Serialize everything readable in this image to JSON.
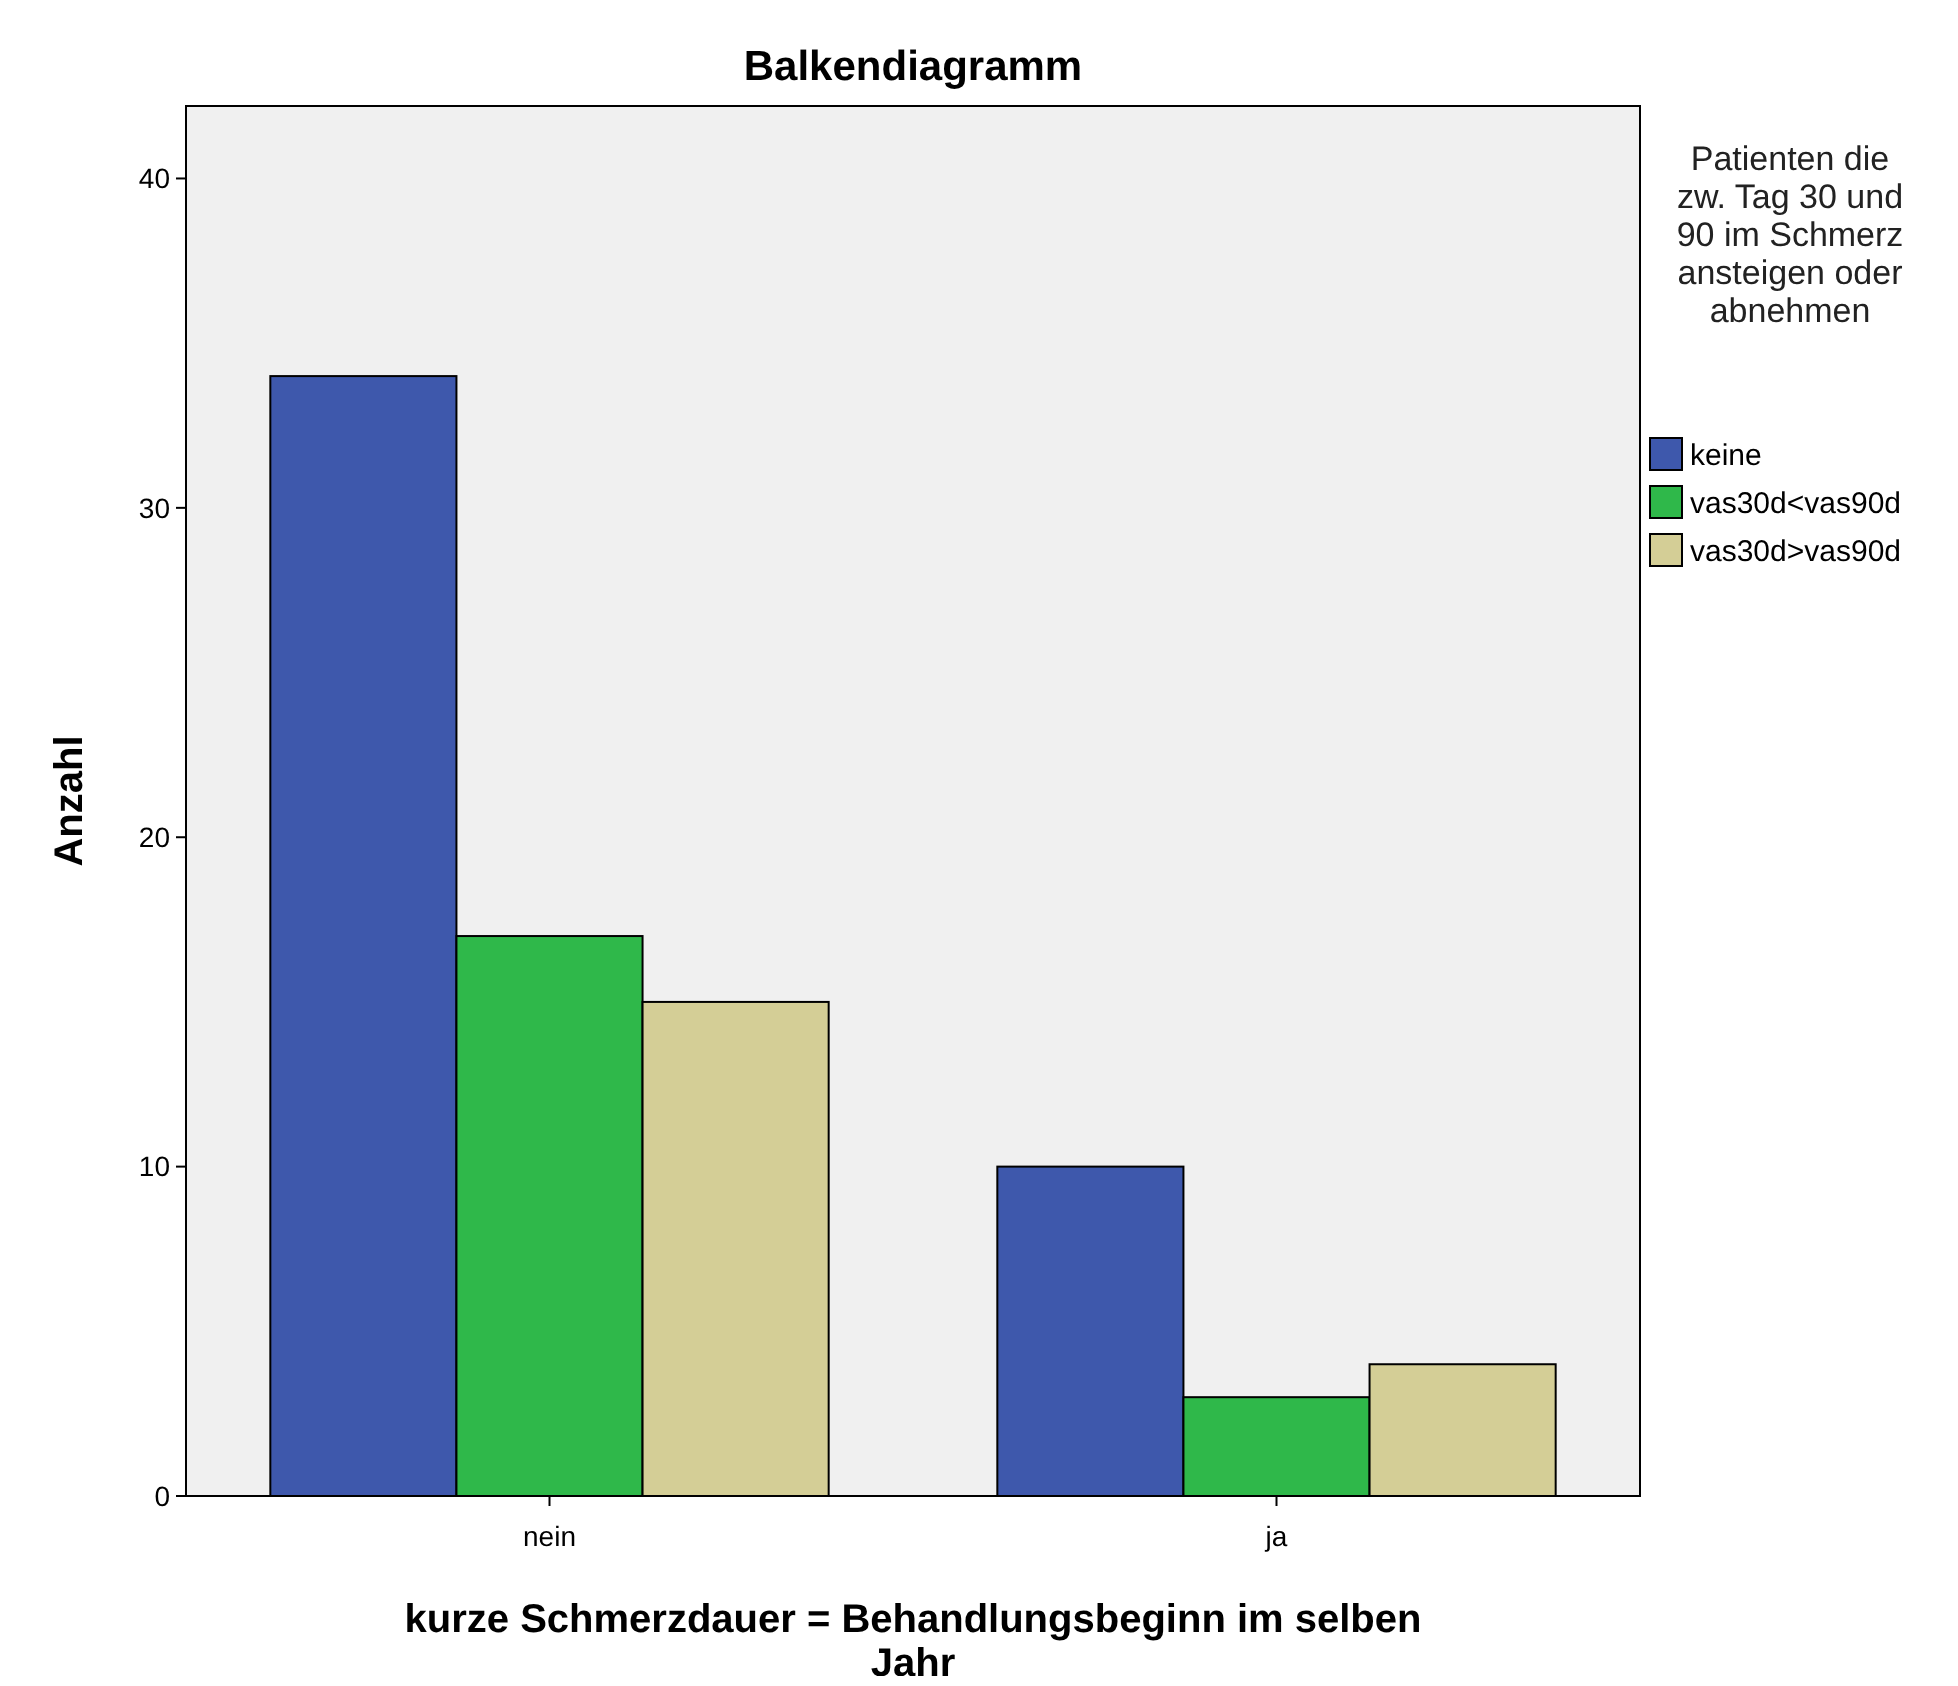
{
  "chart_data": {
    "type": "bar",
    "title": "Balkendiagramm",
    "xlabel": "kurze Schmerzdauer = Behandlungsbeginn im selben Jahr",
    "ylabel": "Anzahl",
    "legend_title": "Patienten die zw. Tag 30 und 90 im Schmerz ansteigen oder abnehmen",
    "categories": [
      "nein",
      "ja"
    ],
    "series": [
      {
        "name": "keine",
        "color": "#3e58ac",
        "values": [
          34,
          10
        ]
      },
      {
        "name": "vas30d<vas90d",
        "color": "#2fb84a",
        "values": [
          17,
          3
        ]
      },
      {
        "name": "vas30d>vas90d",
        "color": "#d4ce96",
        "values": [
          15,
          4
        ]
      }
    ],
    "ylim": [
      0,
      42.2
    ],
    "yticks": [
      0,
      10,
      20,
      30,
      40
    ],
    "grid": false,
    "legend": "top right"
  }
}
